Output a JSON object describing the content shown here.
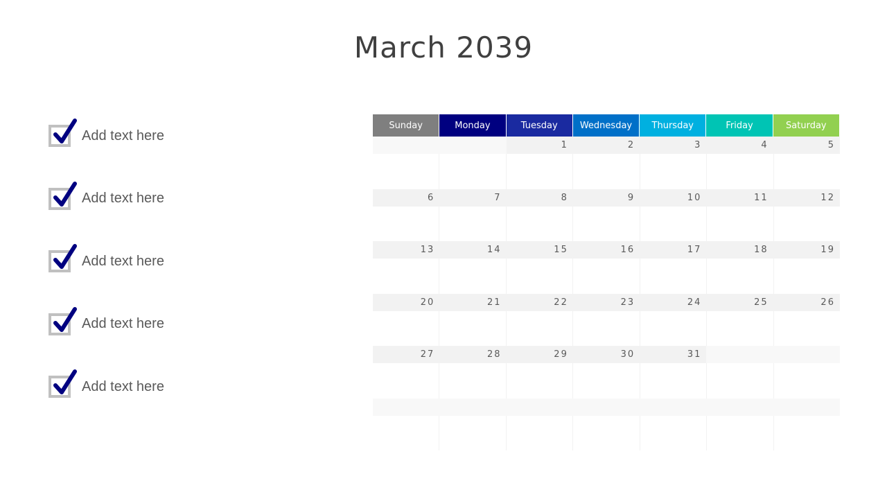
{
  "title": "March 2039",
  "tasks": [
    "Add text here",
    "Add text here",
    "Add text here",
    "Add text here",
    "Add text here"
  ],
  "colors": {
    "check": "#000080",
    "checkbox_border": "#c0c0c0"
  },
  "days": [
    {
      "label": "Sunday",
      "color": "#7f7f7f"
    },
    {
      "label": "Monday",
      "color": "#000080"
    },
    {
      "label": "Tuesday",
      "color": "#1a2aa0"
    },
    {
      "label": "Wednesday",
      "color": "#0070c8"
    },
    {
      "label": "Thursday",
      "color": "#00b0e0"
    },
    {
      "label": "Friday",
      "color": "#00c4b4"
    },
    {
      "label": "Saturday",
      "color": "#92d050"
    }
  ],
  "weeks": [
    [
      "",
      "",
      "1",
      "2",
      "3",
      "4",
      "5"
    ],
    [
      "6",
      "7",
      "8",
      "9",
      "10",
      "11",
      "12"
    ],
    [
      "13",
      "14",
      "15",
      "16",
      "17",
      "18",
      "19"
    ],
    [
      "20",
      "21",
      "22",
      "23",
      "24",
      "25",
      "26"
    ],
    [
      "27",
      "28",
      "29",
      "30",
      "31",
      "",
      ""
    ],
    [
      "",
      "",
      "",
      "",
      "",
      "",
      ""
    ]
  ]
}
